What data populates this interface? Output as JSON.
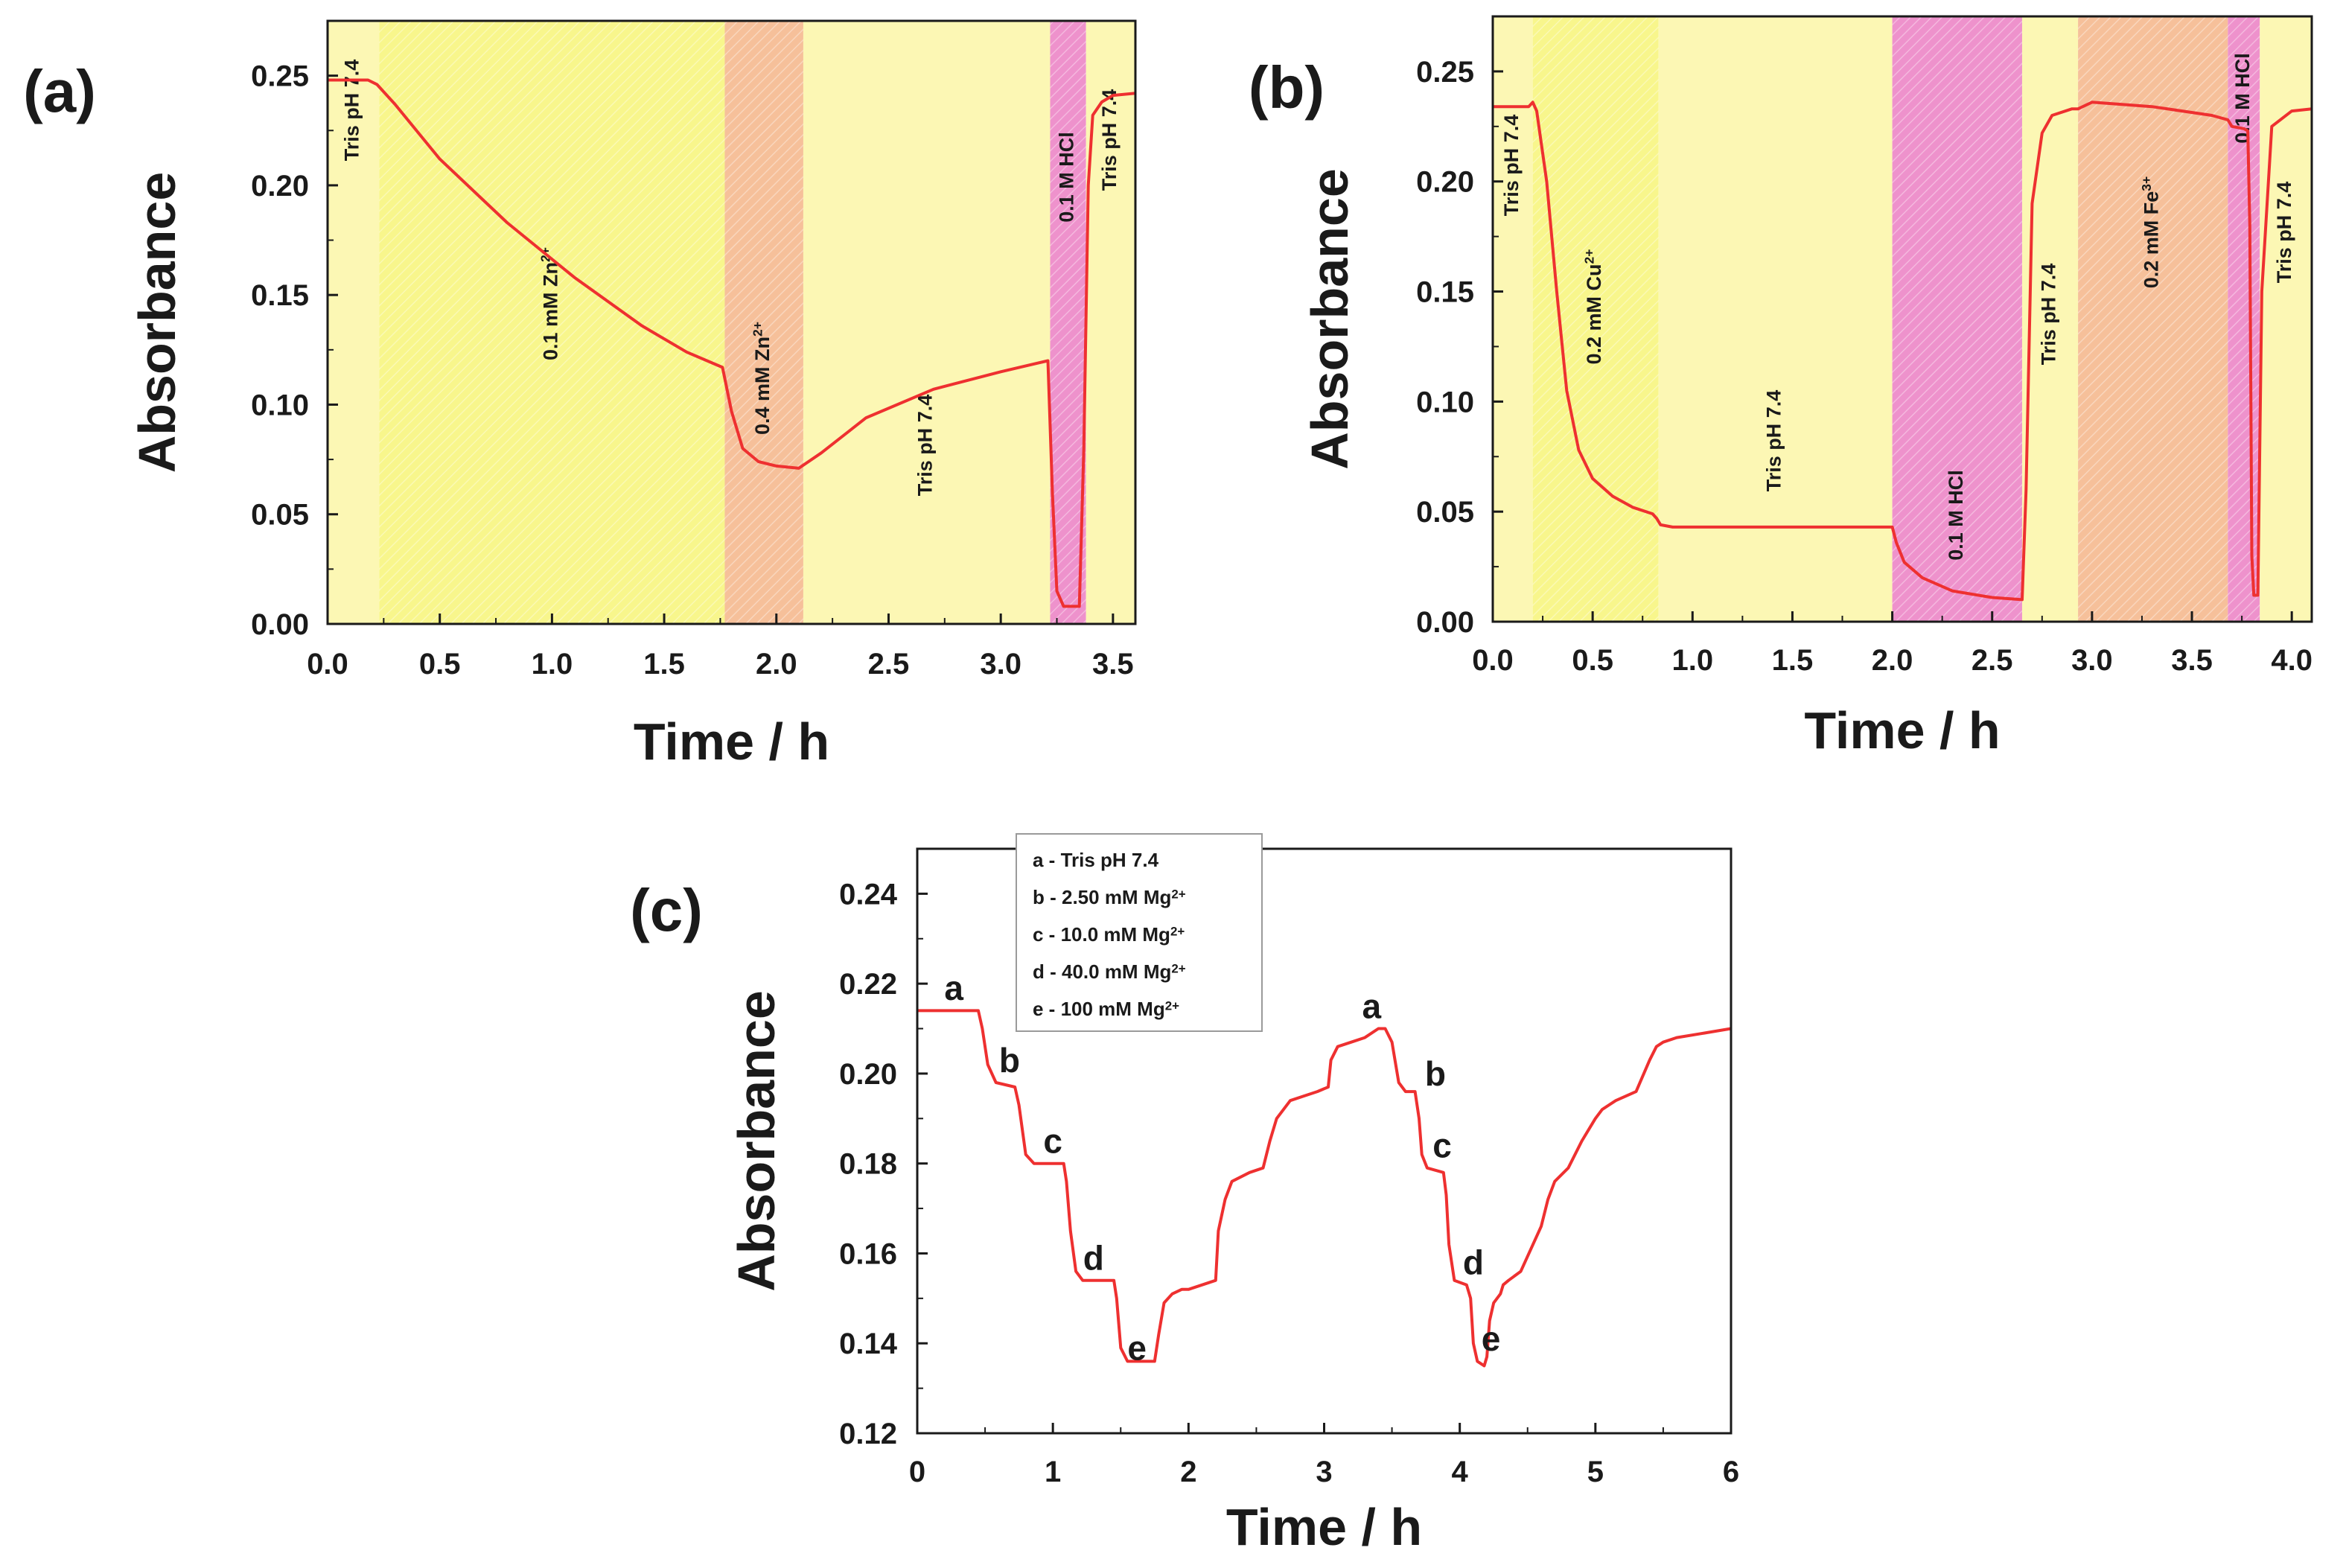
{
  "colors": {
    "curve": "#ee3030",
    "region_tris": "#fcf7b4",
    "region_yellow": "#f8f68c",
    "region_orange": "#f6c09a",
    "region_pink": "#ee92cc",
    "axis": "#1a1a1a"
  },
  "chart_data": [
    {
      "panel": "(a)",
      "type": "line",
      "xlabel": "Time / h",
      "ylabel": "Absorbance",
      "xlim": [
        0,
        3.6
      ],
      "ylim": [
        0,
        0.275
      ],
      "xticks": [
        "0.0",
        "0.5",
        "1.0",
        "1.5",
        "2.0",
        "2.5",
        "3.0",
        "3.5"
      ],
      "yticks": [
        "0.00",
        "0.05",
        "0.10",
        "0.15",
        "0.20",
        "0.25"
      ],
      "regions": [
        {
          "from": 0.0,
          "to": 0.23,
          "color": "tris",
          "label": "Tris pH 7.4",
          "sup": ""
        },
        {
          "from": 0.23,
          "to": 1.77,
          "color": "yellow",
          "label": "0.1 mM Zn",
          "sup": "2+"
        },
        {
          "from": 1.77,
          "to": 2.12,
          "color": "orange",
          "label": "0.4 mM Zn",
          "sup": "2+"
        },
        {
          "from": 2.12,
          "to": 3.22,
          "color": "tris",
          "label": "Tris pH 7.4",
          "sup": ""
        },
        {
          "from": 3.22,
          "to": 3.38,
          "color": "pink",
          "label": "0.1 M HCl",
          "sup": ""
        },
        {
          "from": 3.38,
          "to": 3.6,
          "color": "tris",
          "label": "Tris pH 7.4",
          "sup": ""
        }
      ],
      "series": [
        {
          "x": [
            0,
            0.18,
            0.22,
            0.3,
            0.5,
            0.8,
            1.1,
            1.4,
            1.6,
            1.76,
            1.8,
            1.85,
            1.92,
            2.0,
            2.1,
            2.2,
            2.4,
            2.7,
            3.0,
            3.21,
            3.23,
            3.25,
            3.28,
            3.35,
            3.37,
            3.39,
            3.41,
            3.45,
            3.5,
            3.6
          ],
          "y": [
            0.248,
            0.248,
            0.246,
            0.237,
            0.212,
            0.183,
            0.158,
            0.136,
            0.124,
            0.117,
            0.097,
            0.08,
            0.074,
            0.072,
            0.071,
            0.078,
            0.094,
            0.107,
            0.115,
            0.12,
            0.06,
            0.015,
            0.008,
            0.008,
            0.08,
            0.2,
            0.232,
            0.238,
            0.241,
            0.242
          ]
        }
      ]
    },
    {
      "panel": "(b)",
      "type": "line",
      "xlabel": "Time / h",
      "ylabel": "Absorbance",
      "xlim": [
        0,
        4.1
      ],
      "ylim": [
        0,
        0.275
      ],
      "xticks": [
        "0.0",
        "0.5",
        "1.0",
        "1.5",
        "2.0",
        "2.5",
        "3.0",
        "3.5",
        "4.0"
      ],
      "yticks": [
        "0.00",
        "0.05",
        "0.10",
        "0.15",
        "0.20",
        "0.25"
      ],
      "regions": [
        {
          "from": 0.0,
          "to": 0.2,
          "color": "tris",
          "label": "Tris pH 7.4",
          "sup": ""
        },
        {
          "from": 0.2,
          "to": 0.83,
          "color": "yellow",
          "label": "0.2 mM Cu",
          "sup": "2+"
        },
        {
          "from": 0.83,
          "to": 2.0,
          "color": "tris",
          "label": "Tris pH 7.4",
          "sup": ""
        },
        {
          "from": 2.0,
          "to": 2.65,
          "color": "pink",
          "label": "0.1 M HCl",
          "sup": ""
        },
        {
          "from": 2.65,
          "to": 2.93,
          "color": "tris",
          "label": "Tris pH 7.4",
          "sup": ""
        },
        {
          "from": 2.93,
          "to": 3.68,
          "color": "orange",
          "label": "0.2 mM Fe",
          "sup": "3+"
        },
        {
          "from": 3.68,
          "to": 3.84,
          "color": "pink",
          "label": "0.1 M HCl",
          "sup": ""
        },
        {
          "from": 3.84,
          "to": 4.1,
          "color": "tris",
          "label": "Tris pH 7.4",
          "sup": ""
        }
      ],
      "series": [
        {
          "x": [
            0,
            0.18,
            0.2,
            0.22,
            0.27,
            0.32,
            0.37,
            0.43,
            0.5,
            0.6,
            0.7,
            0.8,
            0.82,
            0.84,
            0.9,
            1.2,
            1.6,
            2.0,
            2.02,
            2.06,
            2.15,
            2.3,
            2.5,
            2.65,
            2.67,
            2.7,
            2.75,
            2.8,
            2.9,
            2.93,
            3.0,
            3.3,
            3.6,
            3.68,
            3.7,
            3.76,
            3.78,
            3.79,
            3.8,
            3.81,
            3.83,
            3.85,
            3.9,
            4.0,
            4.1
          ],
          "y": [
            0.234,
            0.234,
            0.236,
            0.232,
            0.2,
            0.15,
            0.105,
            0.078,
            0.065,
            0.057,
            0.052,
            0.049,
            0.047,
            0.044,
            0.043,
            0.043,
            0.043,
            0.043,
            0.036,
            0.027,
            0.02,
            0.014,
            0.011,
            0.01,
            0.06,
            0.19,
            0.222,
            0.23,
            0.233,
            0.233,
            0.236,
            0.234,
            0.23,
            0.228,
            0.225,
            0.224,
            0.223,
            0.18,
            0.03,
            0.012,
            0.012,
            0.15,
            0.225,
            0.232,
            0.233
          ]
        }
      ]
    },
    {
      "panel": "(c)",
      "type": "line",
      "xlabel": "Time / h",
      "ylabel": "Absorbance",
      "xlim": [
        0,
        6
      ],
      "ylim": [
        0.12,
        0.25
      ],
      "xticks": [
        "0",
        "1",
        "2",
        "3",
        "4",
        "5",
        "6"
      ],
      "yticks": [
        "0.12",
        "0.14",
        "0.16",
        "0.18",
        "0.20",
        "0.22",
        "0.24"
      ],
      "legend": [
        {
          "letter": "a",
          "text": "a - Tris pH 7.4",
          "sup": ""
        },
        {
          "letter": "b",
          "text": "b - 2.50 mM Mg",
          "sup": "2+"
        },
        {
          "letter": "c",
          "text": "c - 10.0 mM Mg",
          "sup": "2+"
        },
        {
          "letter": "d",
          "text": "d - 40.0 mM Mg",
          "sup": "2+"
        },
        {
          "letter": "e",
          "text": "e - 100 mM Mg",
          "sup": "2+"
        }
      ],
      "legend_position": "top-left",
      "point_labels": [
        {
          "text": "a",
          "x": 0.27,
          "y": 0.219
        },
        {
          "text": "b",
          "x": 0.68,
          "y": 0.203
        },
        {
          "text": "c",
          "x": 1.0,
          "y": 0.185
        },
        {
          "text": "d",
          "x": 1.3,
          "y": 0.159
        },
        {
          "text": "e",
          "x": 1.62,
          "y": 0.139
        },
        {
          "text": "a",
          "x": 3.35,
          "y": 0.215
        },
        {
          "text": "b",
          "x": 3.82,
          "y": 0.2
        },
        {
          "text": "c",
          "x": 3.87,
          "y": 0.184
        },
        {
          "text": "d",
          "x": 4.1,
          "y": 0.158
        },
        {
          "text": "e",
          "x": 4.23,
          "y": 0.141
        }
      ],
      "series": [
        {
          "x": [
            0,
            0.45,
            0.48,
            0.52,
            0.58,
            0.72,
            0.75,
            0.8,
            0.86,
            1.08,
            1.1,
            1.13,
            1.17,
            1.22,
            1.45,
            1.47,
            1.5,
            1.55,
            1.75,
            1.78,
            1.82,
            1.88,
            1.95,
            2.0,
            2.2,
            2.22,
            2.27,
            2.32,
            2.45,
            2.55,
            2.6,
            2.65,
            2.75,
            2.85,
            2.95,
            3.03,
            3.05,
            3.1,
            3.2,
            3.3,
            3.4,
            3.45,
            3.5,
            3.55,
            3.6,
            3.67,
            3.7,
            3.72,
            3.76,
            3.88,
            3.9,
            3.92,
            3.96,
            4.05,
            4.08,
            4.1,
            4.13,
            4.18,
            4.2,
            4.22,
            4.25,
            4.3,
            4.32,
            4.36,
            4.45,
            4.6,
            4.65,
            4.7,
            4.8,
            4.9,
            5.0,
            5.05,
            5.15,
            5.3,
            5.4,
            5.45,
            5.5,
            5.6,
            5.8,
            6.0
          ],
          "y": [
            0.214,
            0.214,
            0.21,
            0.202,
            0.198,
            0.197,
            0.193,
            0.182,
            0.18,
            0.18,
            0.176,
            0.165,
            0.156,
            0.154,
            0.154,
            0.15,
            0.139,
            0.136,
            0.136,
            0.142,
            0.149,
            0.151,
            0.152,
            0.152,
            0.154,
            0.165,
            0.172,
            0.176,
            0.178,
            0.179,
            0.185,
            0.19,
            0.194,
            0.195,
            0.196,
            0.197,
            0.203,
            0.206,
            0.207,
            0.208,
            0.21,
            0.21,
            0.207,
            0.198,
            0.196,
            0.196,
            0.19,
            0.182,
            0.179,
            0.178,
            0.173,
            0.162,
            0.154,
            0.153,
            0.15,
            0.14,
            0.136,
            0.135,
            0.137,
            0.145,
            0.149,
            0.151,
            0.153,
            0.154,
            0.156,
            0.166,
            0.172,
            0.176,
            0.179,
            0.185,
            0.19,
            0.192,
            0.194,
            0.196,
            0.203,
            0.206,
            0.207,
            0.208,
            0.209,
            0.21
          ]
        }
      ]
    }
  ]
}
